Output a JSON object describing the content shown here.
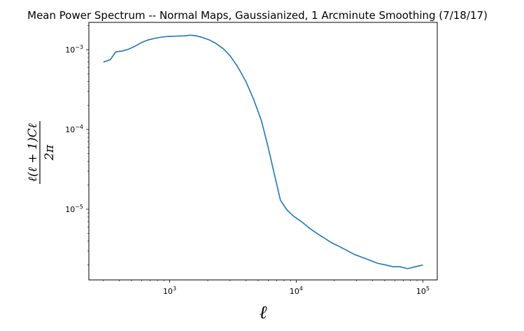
{
  "chart_data": {
    "type": "line",
    "title": "Mean Power Spectrum -- Normal Maps, Gaussianized, 1 Arcminute Smoothing (7/18/17)",
    "xlabel": "ℓ",
    "ylabel": {
      "numerator": "ℓ(ℓ + 1)Cℓ",
      "denominator": "2π"
    },
    "xscale": "log",
    "yscale": "log",
    "xlim": [
      230,
      130000
    ],
    "ylim": [
      1.3e-06,
      0.0022
    ],
    "grid": false,
    "line_color": "#1f77b4",
    "x_ticks": [
      {
        "value": 1000,
        "base": "10",
        "exp": "3"
      },
      {
        "value": 10000,
        "base": "10",
        "exp": "4"
      },
      {
        "value": 100000,
        "base": "10",
        "exp": "5"
      }
    ],
    "y_ticks": [
      {
        "value": 1e-05,
        "base": "10",
        "exp": "−5"
      },
      {
        "value": 0.0001,
        "base": "10",
        "exp": "−4"
      },
      {
        "value": 0.001,
        "base": "10",
        "exp": "−3"
      }
    ],
    "series": [
      {
        "x": [
          300,
          340,
          375,
          420,
          470,
          530,
          600,
          680,
          780,
          900,
          1000,
          1130,
          1300,
          1450,
          1600,
          1800,
          2050,
          2300,
          2650,
          3000,
          3450,
          4000,
          4600,
          5300,
          6000,
          6700,
          7500,
          8400,
          9500,
          11000,
          12700,
          14500,
          16500,
          19000,
          22000,
          25500,
          29000,
          33000,
          38000,
          44000,
          51000,
          58000,
          66000,
          76000,
          87000,
          100000
        ],
        "y": [
          0.0007,
          0.00075,
          0.00094,
          0.00096,
          0.00101,
          0.0011,
          0.00123,
          0.00133,
          0.0014,
          0.00145,
          0.00147,
          0.00148,
          0.00149,
          0.00152,
          0.0015,
          0.00143,
          0.00133,
          0.00121,
          0.00103,
          0.00084,
          0.00061,
          0.0004,
          0.00024,
          0.00013,
          6e-05,
          2.8e-05,
          1.3e-05,
          9.9e-06,
          8.2e-06,
          7e-06,
          5.8e-06,
          5e-06,
          4.4e-06,
          3.8e-06,
          3.4e-06,
          3e-06,
          2.7e-06,
          2.5e-06,
          2.3e-06,
          2.1e-06,
          2e-06,
          1.9e-06,
          1.9e-06,
          1.8e-06,
          1.9e-06,
          2e-06
        ]
      }
    ]
  }
}
